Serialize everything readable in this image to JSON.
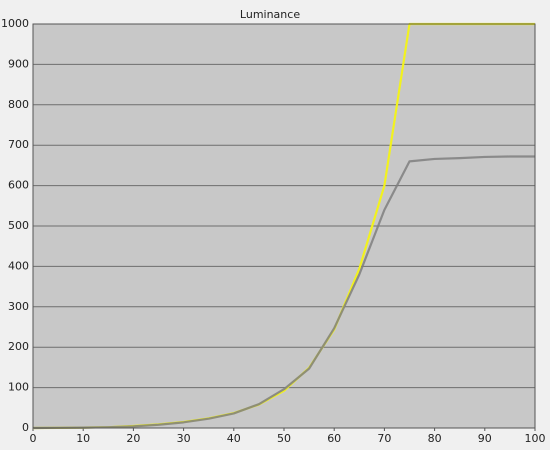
{
  "chart_data": {
    "type": "line",
    "title": "Luminance",
    "x": [
      0,
      5,
      10,
      15,
      20,
      25,
      30,
      35,
      40,
      45,
      50,
      55,
      60,
      65,
      70,
      75,
      80,
      85,
      90,
      95,
      100
    ],
    "series": [
      {
        "color": "#f2f21e",
        "values": [
          0,
          0.3,
          1,
          2,
          5,
          9,
          15,
          24,
          37,
          58,
          92,
          149,
          244,
          394,
          600,
          1000,
          1000,
          1000,
          1000,
          1000,
          1000
        ]
      },
      {
        "color": "#7f7f7f",
        "values": [
          0,
          0.5,
          1,
          2,
          4,
          8,
          14,
          23,
          36,
          59,
          96,
          147,
          247,
          380,
          540,
          660,
          666,
          668,
          671,
          672,
          672
        ]
      }
    ],
    "xlim": [
      0,
      100
    ],
    "xticks": [
      0,
      10,
      20,
      30,
      40,
      50,
      60,
      70,
      80,
      90,
      100
    ],
    "ylim": [
      0,
      1000
    ],
    "yticks": [
      0,
      100,
      200,
      300,
      400,
      500,
      600,
      700,
      800,
      900,
      1000
    ],
    "grid": true
  }
}
